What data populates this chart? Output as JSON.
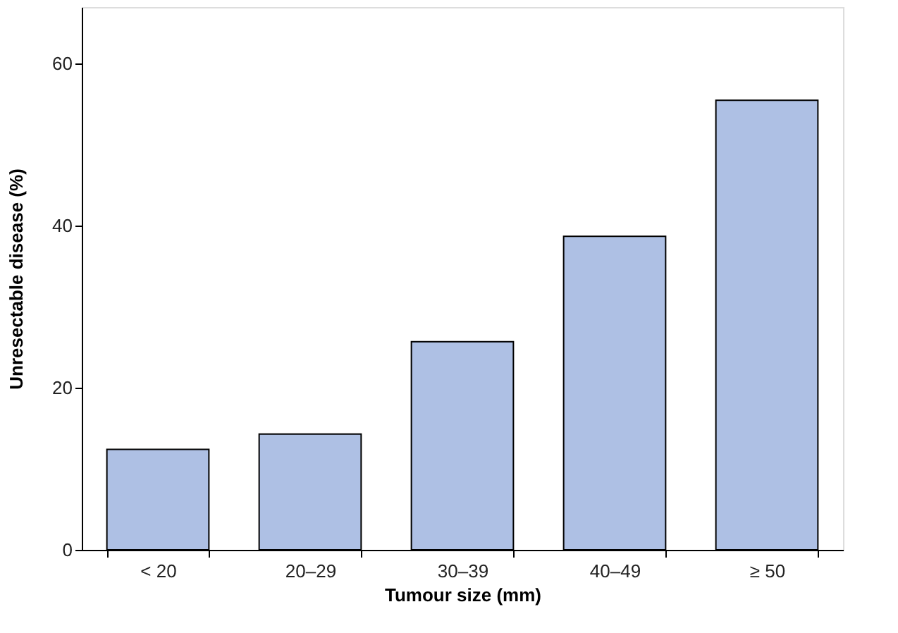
{
  "chart_data": {
    "type": "bar",
    "xlabel": "Tumour size (mm)",
    "ylabel": "Unresectable disease (%)",
    "categories": [
      "< 20",
      "20–29",
      "30–39",
      "40–49",
      "≥ 50"
    ],
    "values": [
      12.4,
      14.3,
      25.7,
      38.7,
      55.5
    ],
    "color": "#aec0e4",
    "ylim": [
      0,
      67
    ],
    "yticks": [
      0,
      20,
      40,
      60
    ],
    "grid": false
  }
}
